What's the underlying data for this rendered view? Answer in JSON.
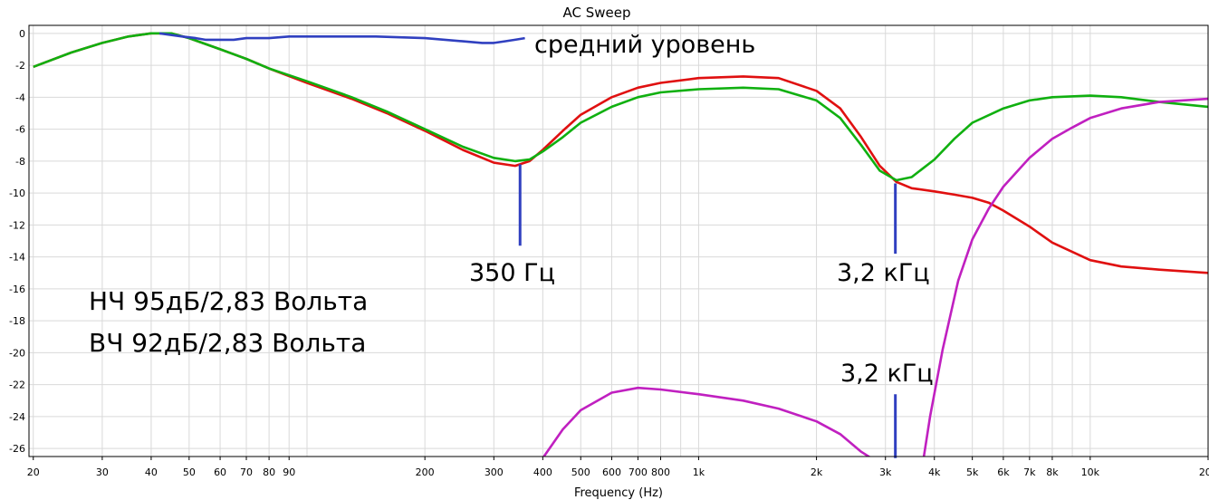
{
  "chart_data": {
    "type": "line",
    "title": "AC Sweep",
    "xlabel": "Frequency (Hz)",
    "ylabel": "",
    "xscale": "log",
    "xlim": [
      19.5,
      20000
    ],
    "ylim": [
      -26.5,
      0.5
    ],
    "grid": true,
    "x_tick_labels": [
      {
        "v": 20,
        "t": "20"
      },
      {
        "v": 30,
        "t": "30"
      },
      {
        "v": 40,
        "t": "40"
      },
      {
        "v": 50,
        "t": "50"
      },
      {
        "v": 60,
        "t": "60"
      },
      {
        "v": 70,
        "t": "70"
      },
      {
        "v": 80,
        "t": "80"
      },
      {
        "v": 90,
        "t": "90"
      },
      {
        "v": 200,
        "t": "200"
      },
      {
        "v": 300,
        "t": "300"
      },
      {
        "v": 400,
        "t": "400"
      },
      {
        "v": 500,
        "t": "500"
      },
      {
        "v": 600,
        "t": "600"
      },
      {
        "v": 700,
        "t": "700"
      },
      {
        "v": 800,
        "t": "800"
      },
      {
        "v": 1000,
        "t": "1k"
      },
      {
        "v": 2000,
        "t": "2k"
      },
      {
        "v": 3000,
        "t": "3k"
      },
      {
        "v": 4000,
        "t": "4k"
      },
      {
        "v": 5000,
        "t": "5k"
      },
      {
        "v": 6000,
        "t": "6k"
      },
      {
        "v": 7000,
        "t": "7k"
      },
      {
        "v": 8000,
        "t": "8k"
      },
      {
        "v": 10000,
        "t": "10k"
      },
      {
        "v": 20000,
        "t": "20k"
      }
    ],
    "y_tick_labels": [
      {
        "v": 0,
        "t": "0"
      },
      {
        "v": -2,
        "t": "-2"
      },
      {
        "v": -4,
        "t": "-4"
      },
      {
        "v": -6,
        "t": "-6"
      },
      {
        "v": -8,
        "t": "-8"
      },
      {
        "v": -10,
        "t": "-10"
      },
      {
        "v": -12,
        "t": "-12"
      },
      {
        "v": -14,
        "t": "-14"
      },
      {
        "v": -16,
        "t": "-16"
      },
      {
        "v": -18,
        "t": "-18"
      },
      {
        "v": -20,
        "t": "-20"
      },
      {
        "v": -22,
        "t": "-22"
      },
      {
        "v": -24,
        "t": "-24"
      },
      {
        "v": -26,
        "t": "-26"
      }
    ],
    "series": [
      {
        "color": "#e01010",
        "x": [
          20,
          25,
          30,
          35,
          40,
          45,
          50,
          60,
          70,
          80,
          100,
          130,
          160,
          200,
          250,
          300,
          340,
          370,
          400,
          450,
          500,
          600,
          700,
          800,
          1000,
          1300,
          1600,
          2000,
          2300,
          2600,
          2900,
          3200,
          3500,
          4000,
          4500,
          5000,
          5500,
          6000,
          7000,
          8000,
          10000,
          12000,
          15000,
          20000
        ],
        "y": [
          -2.1,
          -1.2,
          -0.6,
          -0.2,
          0,
          0,
          -0.3,
          -1.0,
          -1.6,
          -2.2,
          -3.1,
          -4.1,
          -5.0,
          -6.1,
          -7.3,
          -8.1,
          -8.3,
          -8.0,
          -7.3,
          -6.1,
          -5.1,
          -4.0,
          -3.4,
          -3.1,
          -2.8,
          -2.7,
          -2.8,
          -3.6,
          -4.7,
          -6.5,
          -8.3,
          -9.3,
          -9.7,
          -9.9,
          -10.1,
          -10.3,
          -10.6,
          -11.1,
          -12.1,
          -13.1,
          -14.2,
          -14.6,
          -14.8,
          -15.0
        ]
      },
      {
        "color": "#10b010",
        "x": [
          20,
          25,
          30,
          35,
          40,
          45,
          50,
          60,
          70,
          80,
          100,
          130,
          160,
          200,
          250,
          300,
          340,
          370,
          400,
          450,
          500,
          600,
          700,
          800,
          1000,
          1300,
          1600,
          2000,
          2300,
          2600,
          2900,
          3200,
          3500,
          4000,
          4500,
          5000,
          6000,
          7000,
          8000,
          10000,
          12000,
          15000,
          20000
        ],
        "y": [
          -2.1,
          -1.2,
          -0.6,
          -0.2,
          0,
          0,
          -0.3,
          -1.0,
          -1.6,
          -2.2,
          -3.0,
          -4.0,
          -4.9,
          -6.0,
          -7.1,
          -7.8,
          -8.0,
          -7.9,
          -7.4,
          -6.5,
          -5.6,
          -4.6,
          -4.0,
          -3.7,
          -3.5,
          -3.4,
          -3.5,
          -4.2,
          -5.3,
          -7.0,
          -8.6,
          -9.2,
          -9.0,
          -7.9,
          -6.6,
          -5.6,
          -4.7,
          -4.2,
          -4.0,
          -3.9,
          -4.0,
          -4.3,
          -4.6
        ]
      },
      {
        "color": "#c020c0",
        "x": [
          400,
          450,
          500,
          600,
          700,
          800,
          1000,
          1300,
          1600,
          2000,
          2300,
          2600,
          2800
        ],
        "y": [
          -26.6,
          -24.8,
          -23.6,
          -22.5,
          -22.2,
          -22.3,
          -22.6,
          -23.0,
          -23.5,
          -24.3,
          -25.1,
          -26.2,
          -26.7
        ],
        "x2": [
          3750,
          3900,
          4200,
          4600,
          5000,
          5500,
          6000,
          7000,
          8000,
          9000,
          10000,
          12000,
          15000,
          20000
        ],
        "y2": [
          -26.7,
          -24.0,
          -19.8,
          -15.5,
          -12.9,
          -11.0,
          -9.6,
          -7.8,
          -6.6,
          -5.9,
          -5.3,
          -4.7,
          -4.3,
          -4.1
        ]
      },
      {
        "color": "#3040c0",
        "x": [
          42,
          48,
          52,
          55,
          60,
          65,
          70,
          80,
          90,
          100,
          150,
          200,
          250,
          280,
          300,
          320,
          340,
          360
        ],
        "y": [
          0,
          -0.2,
          -0.3,
          -0.4,
          -0.4,
          -0.4,
          -0.3,
          -0.3,
          -0.2,
          -0.2,
          -0.2,
          -0.3,
          -0.5,
          -0.6,
          -0.6,
          -0.5,
          -0.4,
          -0.3
        ]
      }
    ],
    "markers": [
      {
        "x": 350,
        "y1": -8.2,
        "y2": -13.3,
        "color": "#3040c0"
      },
      {
        "x": 3180,
        "y1": -9.4,
        "y2": -13.8,
        "color": "#3040c0"
      },
      {
        "x": 3180,
        "y1": -22.6,
        "y2": -26.6,
        "color": "#3040c0"
      }
    ],
    "annotations": {
      "avg_level": "средний уровень",
      "label_350": "350 Гц",
      "label_32k_a": "3,2 кГц",
      "label_32k_b": "3,2 кГц",
      "lf_info": "НЧ 95дБ/2,83 Вольта",
      "hf_info": "ВЧ 92дБ/2,83 Вольта"
    }
  }
}
